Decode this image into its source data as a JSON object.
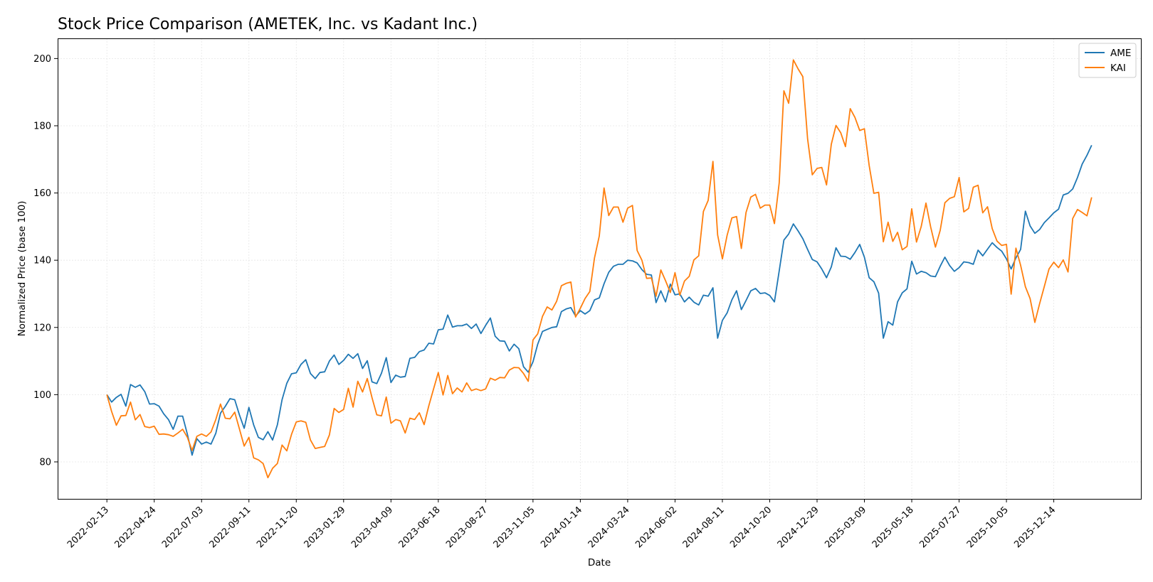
{
  "chart_data": {
    "type": "line",
    "title": "Stock Price Comparison (AMETEK, Inc. vs Kadant Inc.)",
    "xlabel": "Date",
    "ylabel": "Normalized Price (base 100)",
    "ylim": [
      69,
      206
    ],
    "yticks": [
      80,
      100,
      120,
      140,
      160,
      180,
      200
    ],
    "x_start": "2022-02-13",
    "x_step_days": 7,
    "x_tick_labels": [
      "2022-02-13",
      "2022-04-24",
      "2022-07-03",
      "2022-09-11",
      "2022-11-20",
      "2023-01-29",
      "2023-04-09",
      "2023-06-18",
      "2023-08-27",
      "2023-11-05",
      "2024-01-14",
      "2024-03-24",
      "2024-06-02",
      "2024-08-11",
      "2024-10-20",
      "2024-12-29",
      "2025-03-09",
      "2025-05-18",
      "2025-07-27",
      "2025-10-05",
      "2025-12-14"
    ],
    "grid": true,
    "legend_position": "top-right",
    "series": [
      {
        "name": "AME",
        "color": "#1f77b4",
        "values": [
          100.0,
          97.8,
          99.2,
          100.1,
          96.6,
          103.0,
          102.2,
          102.9,
          100.9,
          97.2,
          97.3,
          96.6,
          94.3,
          92.6,
          89.7,
          93.6,
          93.6,
          88.2,
          82.0,
          86.9,
          85.3,
          85.9,
          85.3,
          88.5,
          94.5,
          96.5,
          98.8,
          98.5,
          94.0,
          90.0,
          96.2,
          91.0,
          87.3,
          86.6,
          89.0,
          86.5,
          91.0,
          98.5,
          103.4,
          106.2,
          106.5,
          109.0,
          110.4,
          106.3,
          104.8,
          106.6,
          106.8,
          110.0,
          111.8,
          109.0,
          110.2,
          112.0,
          110.8,
          112.2,
          107.8,
          110.1,
          103.8,
          103.3,
          106.4,
          111.0,
          103.6,
          105.8,
          105.2,
          105.4,
          110.8,
          111.1,
          112.8,
          113.3,
          115.3,
          115.1,
          119.3,
          119.5,
          123.7,
          120.1,
          120.5,
          120.5,
          121.0,
          119.7,
          121.0,
          118.2,
          120.6,
          122.8,
          117.4,
          116.0,
          115.9,
          113.0,
          115.0,
          113.7,
          108.3,
          106.7,
          109.8,
          115.0,
          118.8,
          119.4,
          120.0,
          120.2,
          124.7,
          125.5,
          125.9,
          123.4,
          125.0,
          124.0,
          125.0,
          128.2,
          128.8,
          133.0,
          136.4,
          138.2,
          138.8,
          138.8,
          140.0,
          139.8,
          139.2,
          137.2,
          135.8,
          135.6,
          127.4,
          130.9,
          127.6,
          132.9,
          129.7,
          130.0,
          127.6,
          129.0,
          127.5,
          126.7,
          129.6,
          129.3,
          131.8,
          116.8,
          122.1,
          124.3,
          128.2,
          130.9,
          125.3,
          128.0,
          130.9,
          131.6,
          130.1,
          130.3,
          129.5,
          127.6,
          136.8,
          146.0,
          147.8,
          150.8,
          148.7,
          146.4,
          143.2,
          140.2,
          139.5,
          137.4,
          134.8,
          138.0,
          143.7,
          141.2,
          141.1,
          140.3,
          142.3,
          144.7,
          140.9,
          134.8,
          133.6,
          130.2,
          116.8,
          121.7,
          120.7,
          127.6,
          130.3,
          131.5,
          139.7,
          135.9,
          136.7,
          136.3,
          135.3,
          135.1,
          138.2,
          140.9,
          138.4,
          136.7,
          137.8,
          139.5,
          139.3,
          138.8,
          143.0,
          141.3,
          143.3,
          145.2,
          143.8,
          142.7,
          140.4,
          137.4,
          140.7,
          143.2,
          154.6,
          150.2,
          148.0,
          149.1,
          151.2,
          152.6,
          154.1,
          155.2,
          159.4,
          159.9,
          161.2,
          164.6,
          168.6,
          171.2,
          174.2
        ]
      },
      {
        "name": "KAI",
        "color": "#ff7f0e",
        "values": [
          100.0,
          95.0,
          90.9,
          93.7,
          93.8,
          97.8,
          92.5,
          94.1,
          90.5,
          90.2,
          90.6,
          88.2,
          88.3,
          88.1,
          87.6,
          88.6,
          89.7,
          87.3,
          83.4,
          87.6,
          88.3,
          87.6,
          88.9,
          92.6,
          97.2,
          93.0,
          92.8,
          94.8,
          89.8,
          84.7,
          87.3,
          81.2,
          80.6,
          79.5,
          75.3,
          78.1,
          79.5,
          85.0,
          83.3,
          88.2,
          91.9,
          92.2,
          91.8,
          86.5,
          84.0,
          84.3,
          84.6,
          88.0,
          95.9,
          94.7,
          95.6,
          101.9,
          96.3,
          104.0,
          100.8,
          104.8,
          99.1,
          94.0,
          93.7,
          99.3,
          91.5,
          92.6,
          92.2,
          88.6,
          93.0,
          92.6,
          94.6,
          91.1,
          96.7,
          101.7,
          106.6,
          99.9,
          105.7,
          100.3,
          102.0,
          100.8,
          103.5,
          101.2,
          101.7,
          101.2,
          101.7,
          104.9,
          104.3,
          105.1,
          105.0,
          107.3,
          108.1,
          108.0,
          106.3,
          104.0,
          116.3,
          118.1,
          123.3,
          126.1,
          125.2,
          127.8,
          132.4,
          133.1,
          133.5,
          123.1,
          125.7,
          128.6,
          130.7,
          140.7,
          147.2,
          161.5,
          153.3,
          155.8,
          155.8,
          151.3,
          155.5,
          156.3,
          142.9,
          140.0,
          134.6,
          134.7,
          129.3,
          137.1,
          133.9,
          130.4,
          136.3,
          129.6,
          133.8,
          135.2,
          140.1,
          141.3,
          154.5,
          157.8,
          169.4,
          147.5,
          140.4,
          147.4,
          152.6,
          153.0,
          143.5,
          154.2,
          158.8,
          159.6,
          155.5,
          156.4,
          156.4,
          150.9,
          163.0,
          190.4,
          186.7,
          199.6,
          196.9,
          194.6,
          176.1,
          165.4,
          167.3,
          167.6,
          162.4,
          174.5,
          180.1,
          177.9,
          173.8,
          185.1,
          182.5,
          178.6,
          179.1,
          168.2,
          159.9,
          160.2,
          145.5,
          151.3,
          145.6,
          148.3,
          143.1,
          144.1,
          155.3,
          145.4,
          150.0,
          157.0,
          149.9,
          143.9,
          148.9,
          157.1,
          158.4,
          158.9,
          164.6,
          154.4,
          155.4,
          161.7,
          162.3,
          154.1,
          155.9,
          149.4,
          145.7,
          144.4,
          144.7,
          129.9,
          143.6,
          138.5,
          132.1,
          128.6,
          121.5,
          127.0,
          132.2,
          137.4,
          139.4,
          137.8,
          140.1,
          136.5,
          152.4,
          155.1,
          154.2,
          153.2,
          158.7
        ]
      }
    ]
  }
}
